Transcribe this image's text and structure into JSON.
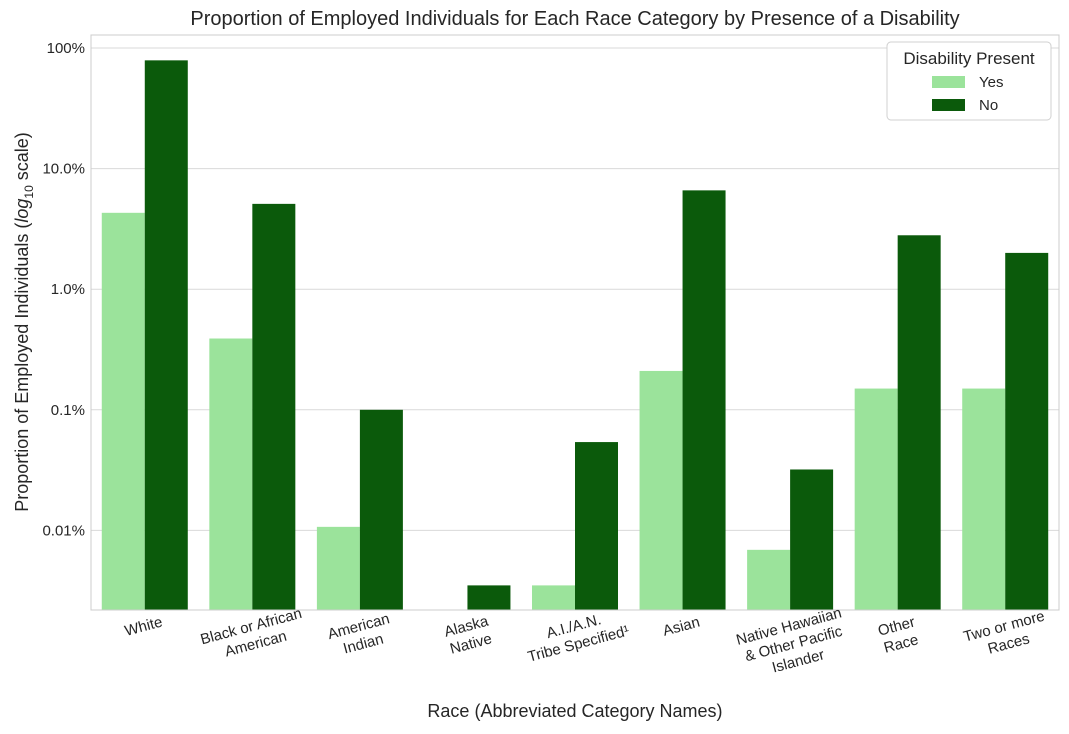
{
  "chart_data": {
    "type": "bar",
    "title": "Proportion of Employed Individuals for Each Race Category by Presence of a Disability",
    "xlabel": "Race (Abbreviated Category Names)",
    "ylabel_prefix": "Proportion of Employed Individuals (",
    "ylabel_log": "log",
    "ylabel_base": "10",
    "ylabel_suffix": " scale)",
    "yscale": "log",
    "ylim": [
      0.002,
      100
    ],
    "grid": true,
    "yticks": [
      {
        "value": 100,
        "label": "100%"
      },
      {
        "value": 10,
        "label": "10.0%"
      },
      {
        "value": 1,
        "label": "1.0%"
      },
      {
        "value": 0.1,
        "label": "0.1%"
      },
      {
        "value": 0.01,
        "label": "0.01%"
      }
    ],
    "categories": [
      [
        "White"
      ],
      [
        "Black or African",
        "American"
      ],
      [
        "American",
        "Indian"
      ],
      [
        "Alaska",
        "Native"
      ],
      [
        "A.I./A.N.",
        "Tribe Specified¹"
      ],
      [
        "Asian"
      ],
      [
        "Native Hawaiian",
        "& Other Pacific",
        "Islander"
      ],
      [
        "Other",
        "Race"
      ],
      [
        "Two or more",
        "Races"
      ]
    ],
    "series": [
      {
        "name": "Yes",
        "color": "#9be39b",
        "values": [
          4.3,
          0.39,
          0.0107,
          null,
          0.0035,
          0.21,
          0.0069,
          0.15,
          0.15
        ]
      },
      {
        "name": "No",
        "color": "#0b5a0b",
        "values": [
          79,
          5.1,
          0.1,
          0.0035,
          0.054,
          6.6,
          0.032,
          2.8,
          2.0
        ]
      }
    ],
    "legend": {
      "title": "Disability Present",
      "position": "top-right"
    }
  }
}
